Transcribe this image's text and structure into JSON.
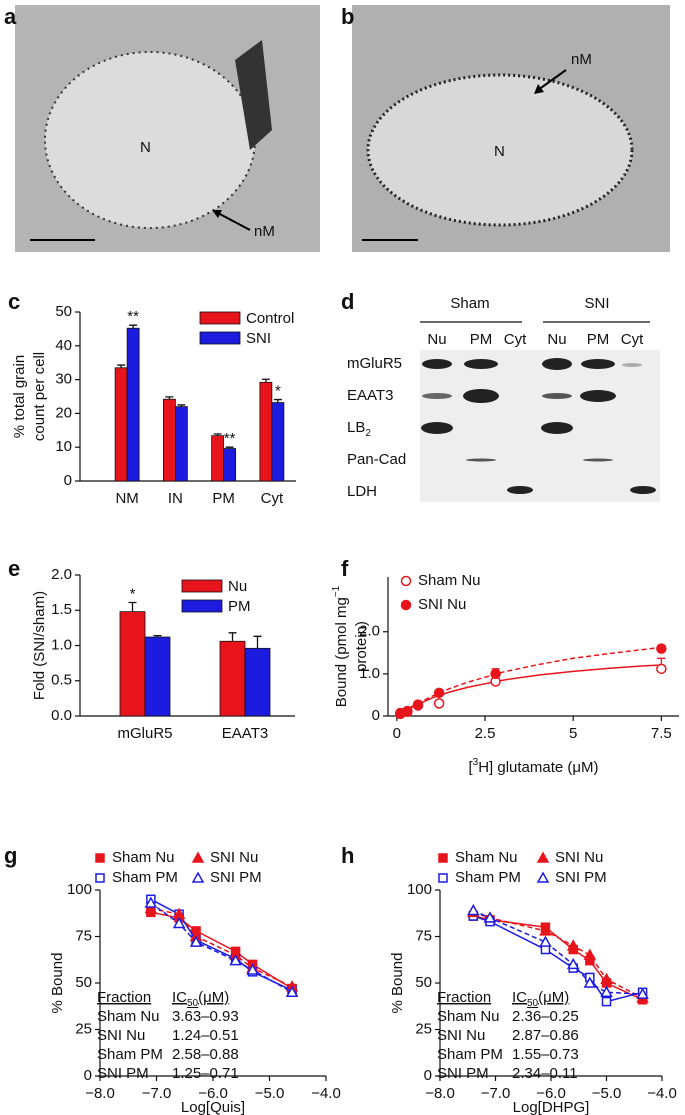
{
  "panels": {
    "a": {
      "label": "a",
      "annotations": [
        "N",
        "nM"
      ]
    },
    "b": {
      "label": "b",
      "annotations": [
        "nM",
        "N"
      ]
    },
    "d": {
      "label": "d",
      "groups": [
        "Sham",
        "SNI"
      ],
      "lanes": [
        "Nu",
        "PM",
        "Cyt",
        "Nu",
        "PM",
        "Cyt"
      ],
      "rows": [
        "mGluR5",
        "EAAT3",
        {
          "text": "LB",
          "sub": "2"
        },
        "Pan-Cad",
        "LDH"
      ]
    }
  },
  "chart_data": [
    {
      "type": "bar",
      "panel_label": "c",
      "ylabel": [
        "% total grain",
        "count per cell"
      ],
      "categories": [
        "NM",
        "IN",
        "PM",
        "Cyt"
      ],
      "series": [
        {
          "name": "Control",
          "color": "#e8141c",
          "values": [
            33.5,
            24.2,
            13.4,
            29.2
          ],
          "errors": [
            0.8,
            0.7,
            0.5,
            0.9
          ]
        },
        {
          "name": "SNI",
          "color": "#1c1ce0",
          "values": [
            45.2,
            22,
            9.6,
            23.2
          ],
          "errors": [
            0.9,
            0.5,
            0.4,
            0.9
          ],
          "significance": [
            "**",
            null,
            "**",
            "*"
          ]
        }
      ],
      "ylim": [
        0,
        50
      ],
      "yticks": [
        0,
        10,
        20,
        30,
        40,
        50
      ]
    },
    {
      "type": "bar",
      "panel_label": "e",
      "ylabel": [
        "Fold (SNI/sham)"
      ],
      "categories": [
        "mGluR5",
        "EAAT3"
      ],
      "series": [
        {
          "name": "Nu",
          "color": "#e8141c",
          "values": [
            1.48,
            1.06
          ],
          "errors": [
            0.13,
            0.12
          ],
          "significance": [
            "*",
            null
          ]
        },
        {
          "name": "PM",
          "color": "#1c1ce0",
          "values": [
            1.12,
            0.96
          ],
          "errors": [
            0.02,
            0.17
          ]
        }
      ],
      "ylim": [
        0,
        2
      ],
      "yticks": [
        {
          "value": 0,
          "label": "0.0"
        },
        0.5,
        {
          "value": 1,
          "label": "1.0"
        },
        1.5,
        {
          "value": 2,
          "label": "2.0"
        }
      ]
    },
    {
      "type": "scatter",
      "panel_label": "f",
      "ylabel": [
        {
          "text": "Bound (pmol mg",
          "sup": "−1"
        },
        "protein)"
      ],
      "xlabel": {
        "pre": "[",
        "sup": "3",
        "text": "H] glutamate (μM)"
      },
      "series": [
        {
          "name": "Sham Nu",
          "color": "#e8141c",
          "filled": false,
          "line_style": "solid",
          "x": [
            0.1,
            0.3,
            0.6,
            1.2,
            2.8,
            7.5
          ],
          "values": [
            0.05,
            0.1,
            0.25,
            0.3,
            0.82,
            1.12
          ],
          "errors": [
            null,
            null,
            null,
            null,
            null,
            0.25
          ],
          "fit": {
            "x": [
              0,
              0.5,
              1,
              1.5,
              2,
              3,
              4,
              5,
              6,
              7,
              7.5
            ],
            "values": [
              0,
              0.24,
              0.43,
              0.57,
              0.68,
              0.85,
              0.97,
              1.06,
              1.13,
              1.19,
              1.21
            ]
          }
        },
        {
          "name": "SNI Nu",
          "color": "#e8141c",
          "filled": true,
          "line_style": "dashed",
          "x": [
            0.1,
            0.3,
            0.6,
            1.2,
            2.8,
            7.5
          ],
          "values": [
            0.07,
            0.12,
            0.27,
            0.55,
            1.0,
            1.6
          ],
          "errors": [
            null,
            null,
            null,
            null,
            0.12,
            0.08
          ],
          "fit": {
            "x": [
              0,
              0.5,
              1,
              1.5,
              2,
              3,
              4,
              5,
              6,
              7,
              7.5
            ],
            "values": [
              0,
              0.26,
              0.47,
              0.65,
              0.8,
              1.04,
              1.22,
              1.37,
              1.48,
              1.58,
              1.63
            ]
          }
        }
      ],
      "xlim": [
        -0.25,
        8
      ],
      "xticks": [
        0,
        2.5,
        5,
        7.5
      ],
      "ylim": [
        0,
        3.3
      ],
      "yticks": [
        0,
        {
          "value": 1,
          "label": "1.0"
        },
        {
          "value": 2,
          "label": "2.0"
        }
      ]
    },
    {
      "type": "line",
      "panel_label": "g",
      "ylabel": [
        "% Bound"
      ],
      "xlabel": "Log[Quis]",
      "series": [
        {
          "name": "Sham Nu",
          "color": "#e8141c",
          "marker": "square",
          "filled": true,
          "line_style": "solid",
          "x": [
            -7.1,
            -6.6,
            -6.3,
            -5.6,
            -5.3,
            -4.6
          ],
          "values": [
            88,
            85,
            78,
            67,
            60,
            47
          ]
        },
        {
          "name": "Sham PM",
          "color": "#1c1ce0",
          "marker": "square",
          "filled": false,
          "line_style": "solid",
          "x": [
            -7.1,
            -6.6,
            -6.3,
            -5.6,
            -5.3,
            -4.6
          ],
          "values": [
            95,
            87,
            73,
            63,
            56,
            46
          ]
        },
        {
          "name": "SNI Nu",
          "color": "#e8141c",
          "marker": "triangle",
          "filled": true,
          "line_style": "dashed",
          "x": [
            -7.1,
            -6.6,
            -6.3,
            -5.6,
            -5.3,
            -4.6
          ],
          "values": [
            90,
            87,
            75,
            65,
            58,
            48
          ]
        },
        {
          "name": "SNI PM",
          "color": "#1c1ce0",
          "marker": "triangle",
          "filled": false,
          "line_style": "dashed",
          "x": [
            -7.1,
            -6.6,
            -6.3,
            -5.6,
            -5.3,
            -4.6
          ],
          "values": [
            93,
            82,
            72,
            62,
            57,
            45
          ]
        }
      ],
      "table": {
        "header": [
          "Fraction",
          {
            "text": "IC",
            "sub": "50",
            "after": "(μM)"
          }
        ],
        "rows": [
          [
            "Sham Nu",
            "3.63–0.93"
          ],
          [
            "SNI Nu",
            "1.24–0.51"
          ],
          [
            "Sham PM",
            "2.58–0.88"
          ],
          [
            "SNI PM",
            "1.25–0.71"
          ]
        ]
      },
      "xlim": [
        -8,
        -4
      ],
      "xticks": [
        {
          "value": -8,
          "label": "−8.0"
        },
        {
          "value": -7,
          "label": "−7.0"
        },
        {
          "value": -6,
          "label": "−6.0"
        },
        {
          "value": -5,
          "label": "−5.0"
        },
        {
          "value": -4,
          "label": "−4.0"
        }
      ],
      "ylim": [
        0,
        100
      ],
      "yticks": [
        0,
        25,
        50,
        75,
        100
      ]
    },
    {
      "type": "line",
      "panel_label": "h",
      "ylabel": [
        "% Bound"
      ],
      "xlabel": "Log[DHPG]",
      "series": [
        {
          "name": "Sham Nu",
          "color": "#e8141c",
          "marker": "square",
          "filled": true,
          "line_style": "solid",
          "x": [
            -7.4,
            -7.1,
            -6.1,
            -5.6,
            -5.3,
            -5.0,
            -4.35
          ],
          "values": [
            86,
            84,
            80,
            68,
            62,
            50,
            41
          ]
        },
        {
          "name": "Sham PM",
          "color": "#1c1ce0",
          "marker": "square",
          "filled": false,
          "line_style": "solid",
          "x": [
            -7.4,
            -7.1,
            -6.1,
            -5.6,
            -5.3,
            -5.0,
            -4.35
          ],
          "values": [
            86,
            83,
            68,
            58,
            53,
            40,
            45
          ]
        },
        {
          "name": "SNI Nu",
          "color": "#e8141c",
          "marker": "triangle",
          "filled": true,
          "line_style": "dashed",
          "x": [
            -7.4,
            -7.1,
            -6.1,
            -5.6,
            -5.3,
            -5.0,
            -4.35
          ],
          "values": [
            88,
            85,
            78,
            70,
            65,
            52,
            42
          ]
        },
        {
          "name": "SNI PM",
          "color": "#1c1ce0",
          "marker": "triangle",
          "filled": false,
          "line_style": "dashed",
          "x": [
            -7.4,
            -7.1,
            -6.1,
            -5.6,
            -5.3,
            -5.0,
            -4.35
          ],
          "values": [
            89,
            85,
            72,
            60,
            50,
            45,
            44
          ]
        }
      ],
      "table": {
        "header": [
          "Fraction",
          {
            "text": "IC",
            "sub": "50",
            "after": "(μM)"
          }
        ],
        "rows": [
          [
            "Sham Nu",
            "2.36–0.25"
          ],
          [
            "SNI Nu",
            "2.87–0.86"
          ],
          [
            "Sham PM",
            "1.55–0.73"
          ],
          [
            "SNI PM",
            "2.34–0.11"
          ]
        ]
      },
      "xlim": [
        -8,
        -4
      ],
      "xticks": [
        {
          "value": -8,
          "label": "−8.0"
        },
        {
          "value": -7,
          "label": "−7.0"
        },
        {
          "value": -6,
          "label": "−6.0"
        },
        {
          "value": -5,
          "label": "−5.0"
        },
        {
          "value": -4,
          "label": "−4.0"
        }
      ],
      "ylim": [
        0,
        100
      ],
      "yticks": [
        0,
        25,
        50,
        75,
        100
      ]
    }
  ]
}
